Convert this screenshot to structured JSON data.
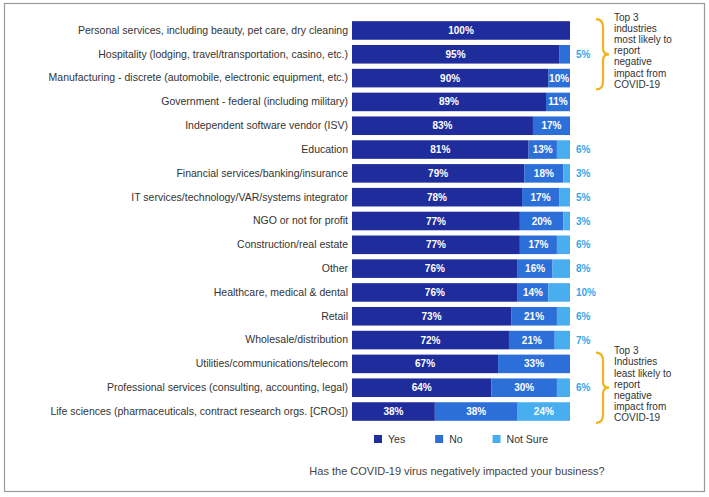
{
  "chart_data": {
    "type": "bar",
    "orientation": "horizontal",
    "stacked": true,
    "data_labels": true,
    "tick_labels": "y",
    "grid": false,
    "legend": "bottom",
    "title": "Has the COVID-19 virus negatively impacted your business?",
    "xlim": [
      0,
      100
    ],
    "categories": [
      "Personal services, including beauty, pet care, dry cleaning",
      "Hospitality (lodging, travel/transportation, casino, etc.)",
      "Manufacturing - discrete (automobile, electronic equipment, etc.)",
      "Government - federal (including military)",
      "Independent software vendor (ISV)",
      "Education",
      "Financial services/banking/insurance",
      "IT services/technology/VAR/systems integrator",
      "NGO or not for profit",
      "Construction/real estate",
      "Other",
      "Healthcare, medical & dental",
      "Retail",
      "Wholesale/distribution",
      "Utilities/communications/telecom",
      "Professional services (consulting, accounting, legal)",
      "Life sciences (pharmaceuticals, contract research orgs. [CROs])"
    ],
    "series": [
      {
        "name": "Yes",
        "color": "#1f2d9c",
        "values": [
          100,
          95,
          90,
          89,
          83,
          81,
          79,
          78,
          77,
          77,
          76,
          76,
          73,
          72,
          67,
          64,
          38
        ],
        "value_labels": [
          "100%",
          "95%",
          "90%",
          "89%",
          "83%",
          "81%",
          "79%",
          "78%",
          "77%",
          "77%",
          "76%",
          "76%",
          "73%",
          "72%",
          "67%",
          "64%",
          "38%"
        ]
      },
      {
        "name": "No",
        "color": "#2d6fd8",
        "values": [
          0,
          5,
          10,
          11,
          17,
          13,
          18,
          17,
          20,
          17,
          16,
          14,
          21,
          21,
          33,
          30,
          38
        ],
        "value_labels": [
          null,
          "5%",
          "10%",
          "11%",
          "17%",
          "13%",
          "18%",
          "17%",
          "20%",
          "17%",
          "16%",
          "14%",
          "21%",
          "21%",
          "33%",
          "30%",
          "38%"
        ]
      },
      {
        "name": "Not Sure",
        "color": "#48aef0",
        "values": [
          0,
          0,
          0,
          0,
          0,
          6,
          3,
          5,
          3,
          6,
          8,
          10,
          6,
          7,
          0,
          6,
          24
        ],
        "value_labels": [
          null,
          null,
          null,
          null,
          null,
          "6%",
          "3%",
          "5%",
          "3%",
          "6%",
          "8%",
          "10%",
          "6%",
          "7%",
          null,
          "6%",
          "24%"
        ]
      }
    ],
    "annotations": [
      {
        "text": "Top 3\nindustries\nmost likely to\nreport\nnegative\nimpact from\nCOVID-19"
      },
      {
        "text": "Top 3\nIndustries\nleast likely to\nreport\nnegative\nimpact from\nCOVID-19"
      }
    ]
  }
}
